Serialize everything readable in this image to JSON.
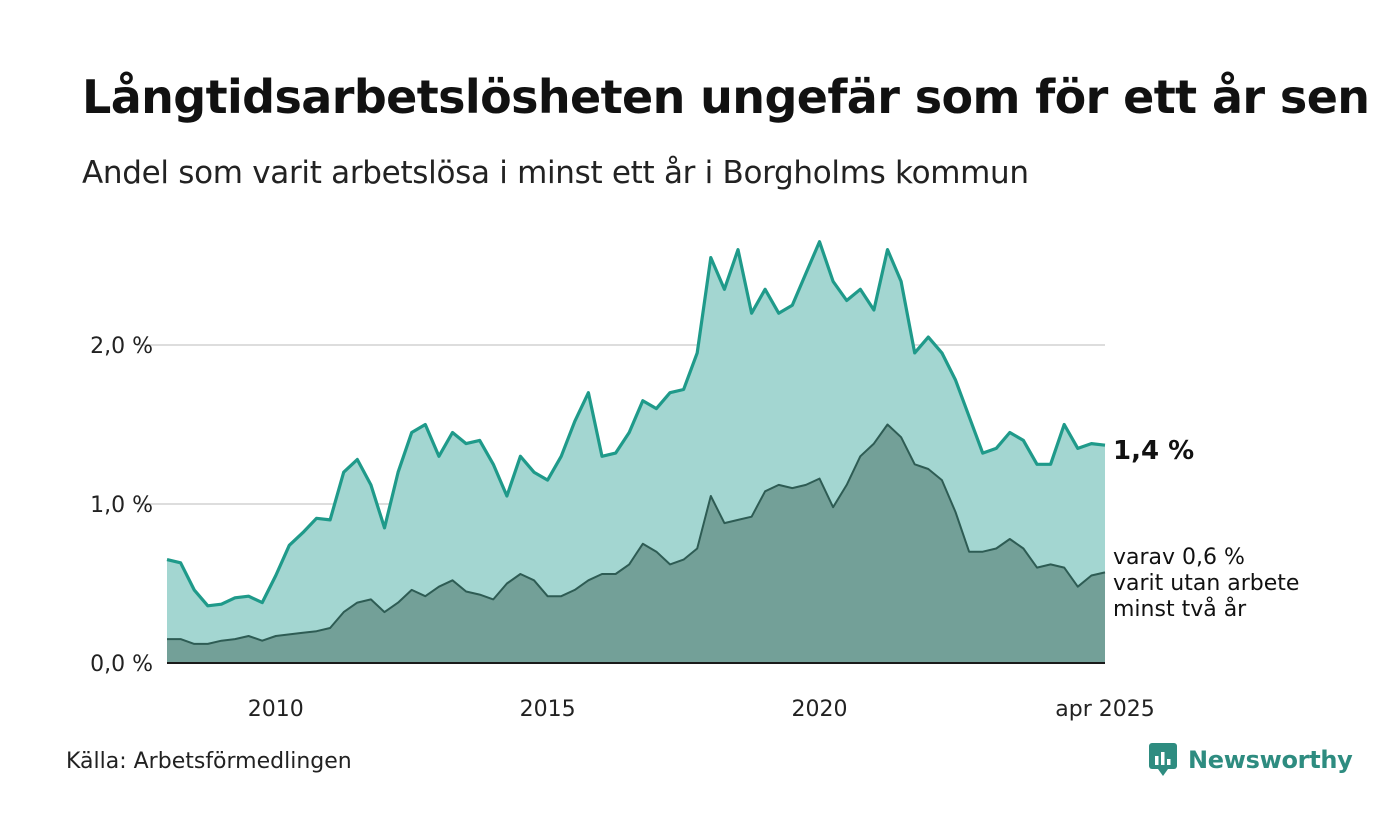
{
  "title": "Långtidsarbetslösheten ungefär som för ett år sen",
  "subtitle": "Andel som varit arbetslösa i minst ett år i Borgholms kommun",
  "source": "Källa: Arbetsförmedlingen",
  "brand": {
    "name": "Newsworthy",
    "icon": "newsworthy-logo-icon"
  },
  "colors": {
    "total_line": "#1f9a8a",
    "total_fill": "#a3d6d1",
    "sub_line": "#2e5c54",
    "sub_fill": "#73a098",
    "grid": "#dddddd",
    "brand": "#2e8c80"
  },
  "chart_data": {
    "type": "area",
    "x_start": "2008-01",
    "x_end": "2025-04",
    "x_ticks": [
      {
        "year": 2010,
        "label": "2010"
      },
      {
        "year": 2015,
        "label": "2015"
      },
      {
        "year": 2020,
        "label": "2020"
      },
      {
        "year": 2025.25,
        "label": "apr 2025"
      }
    ],
    "y_ticks": [
      {
        "value": 0,
        "label": "0,0 %"
      },
      {
        "value": 1,
        "label": "1,0 %"
      },
      {
        "value": 2,
        "label": "2,0 %"
      }
    ],
    "ylim": [
      0,
      2.7
    ],
    "grid": true,
    "annotations": {
      "total_label": "1,4 %",
      "sub_label_lines": [
        "varav 0,6 %",
        "varit utan arbete",
        "minst två år"
      ]
    },
    "series": [
      {
        "key": "total",
        "points": [
          [
            "2008-01",
            0.65
          ],
          [
            "2008-04",
            0.63
          ],
          [
            "2008-07",
            0.46
          ],
          [
            "2008-10",
            0.36
          ],
          [
            "2009-01",
            0.37
          ],
          [
            "2009-04",
            0.41
          ],
          [
            "2009-07",
            0.42
          ],
          [
            "2009-10",
            0.38
          ],
          [
            "2010-01",
            0.55
          ],
          [
            "2010-04",
            0.74
          ],
          [
            "2010-07",
            0.82
          ],
          [
            "2010-10",
            0.91
          ],
          [
            "2011-01",
            0.9
          ],
          [
            "2011-04",
            1.2
          ],
          [
            "2011-07",
            1.28
          ],
          [
            "2011-10",
            1.12
          ],
          [
            "2012-01",
            0.85
          ],
          [
            "2012-04",
            1.2
          ],
          [
            "2012-07",
            1.45
          ],
          [
            "2012-10",
            1.5
          ],
          [
            "2013-01",
            1.3
          ],
          [
            "2013-04",
            1.45
          ],
          [
            "2013-07",
            1.38
          ],
          [
            "2013-10",
            1.4
          ],
          [
            "2014-01",
            1.25
          ],
          [
            "2014-04",
            1.05
          ],
          [
            "2014-07",
            1.3
          ],
          [
            "2014-10",
            1.2
          ],
          [
            "2015-01",
            1.15
          ],
          [
            "2015-04",
            1.3
          ],
          [
            "2015-07",
            1.52
          ],
          [
            "2015-10",
            1.7
          ],
          [
            "2016-01",
            1.3
          ],
          [
            "2016-04",
            1.32
          ],
          [
            "2016-07",
            1.45
          ],
          [
            "2016-10",
            1.65
          ],
          [
            "2017-01",
            1.6
          ],
          [
            "2017-04",
            1.7
          ],
          [
            "2017-07",
            1.72
          ],
          [
            "2017-10",
            1.95
          ],
          [
            "2018-01",
            2.55
          ],
          [
            "2018-04",
            2.35
          ],
          [
            "2018-07",
            2.6
          ],
          [
            "2018-10",
            2.2
          ],
          [
            "2019-01",
            2.35
          ],
          [
            "2019-04",
            2.2
          ],
          [
            "2019-07",
            2.25
          ],
          [
            "2019-10",
            2.45
          ],
          [
            "2020-01",
            2.65
          ],
          [
            "2020-04",
            2.4
          ],
          [
            "2020-07",
            2.28
          ],
          [
            "2020-10",
            2.35
          ],
          [
            "2021-01",
            2.22
          ],
          [
            "2021-04",
            2.6
          ],
          [
            "2021-07",
            2.4
          ],
          [
            "2021-10",
            1.95
          ],
          [
            "2022-01",
            2.05
          ],
          [
            "2022-04",
            1.95
          ],
          [
            "2022-07",
            1.78
          ],
          [
            "2022-10",
            1.55
          ],
          [
            "2023-01",
            1.32
          ],
          [
            "2023-04",
            1.35
          ],
          [
            "2023-07",
            1.45
          ],
          [
            "2023-10",
            1.4
          ],
          [
            "2024-01",
            1.25
          ],
          [
            "2024-04",
            1.25
          ],
          [
            "2024-07",
            1.5
          ],
          [
            "2024-10",
            1.35
          ],
          [
            "2025-01",
            1.38
          ],
          [
            "2025-04",
            1.37
          ]
        ]
      },
      {
        "key": "sub",
        "points": [
          [
            "2008-01",
            0.15
          ],
          [
            "2008-04",
            0.15
          ],
          [
            "2008-07",
            0.12
          ],
          [
            "2008-10",
            0.12
          ],
          [
            "2009-01",
            0.14
          ],
          [
            "2009-04",
            0.15
          ],
          [
            "2009-07",
            0.17
          ],
          [
            "2009-10",
            0.14
          ],
          [
            "2010-01",
            0.17
          ],
          [
            "2010-04",
            0.18
          ],
          [
            "2010-07",
            0.19
          ],
          [
            "2010-10",
            0.2
          ],
          [
            "2011-01",
            0.22
          ],
          [
            "2011-04",
            0.32
          ],
          [
            "2011-07",
            0.38
          ],
          [
            "2011-10",
            0.4
          ],
          [
            "2012-01",
            0.32
          ],
          [
            "2012-04",
            0.38
          ],
          [
            "2012-07",
            0.46
          ],
          [
            "2012-10",
            0.42
          ],
          [
            "2013-01",
            0.48
          ],
          [
            "2013-04",
            0.52
          ],
          [
            "2013-07",
            0.45
          ],
          [
            "2013-10",
            0.43
          ],
          [
            "2014-01",
            0.4
          ],
          [
            "2014-04",
            0.5
          ],
          [
            "2014-07",
            0.56
          ],
          [
            "2014-10",
            0.52
          ],
          [
            "2015-01",
            0.42
          ],
          [
            "2015-04",
            0.42
          ],
          [
            "2015-07",
            0.46
          ],
          [
            "2015-10",
            0.52
          ],
          [
            "2016-01",
            0.56
          ],
          [
            "2016-04",
            0.56
          ],
          [
            "2016-07",
            0.62
          ],
          [
            "2016-10",
            0.75
          ],
          [
            "2017-01",
            0.7
          ],
          [
            "2017-04",
            0.62
          ],
          [
            "2017-07",
            0.65
          ],
          [
            "2017-10",
            0.72
          ],
          [
            "2018-01",
            1.05
          ],
          [
            "2018-04",
            0.88
          ],
          [
            "2018-07",
            0.9
          ],
          [
            "2018-10",
            0.92
          ],
          [
            "2019-01",
            1.08
          ],
          [
            "2019-04",
            1.12
          ],
          [
            "2019-07",
            1.1
          ],
          [
            "2019-10",
            1.12
          ],
          [
            "2020-01",
            1.16
          ],
          [
            "2020-04",
            0.98
          ],
          [
            "2020-07",
            1.12
          ],
          [
            "2020-10",
            1.3
          ],
          [
            "2021-01",
            1.38
          ],
          [
            "2021-04",
            1.5
          ],
          [
            "2021-07",
            1.42
          ],
          [
            "2021-10",
            1.25
          ],
          [
            "2022-01",
            1.22
          ],
          [
            "2022-04",
            1.15
          ],
          [
            "2022-07",
            0.95
          ],
          [
            "2022-10",
            0.7
          ],
          [
            "2023-01",
            0.7
          ],
          [
            "2023-04",
            0.72
          ],
          [
            "2023-07",
            0.78
          ],
          [
            "2023-10",
            0.72
          ],
          [
            "2024-01",
            0.6
          ],
          [
            "2024-04",
            0.62
          ],
          [
            "2024-07",
            0.6
          ],
          [
            "2024-10",
            0.48
          ],
          [
            "2025-01",
            0.55
          ],
          [
            "2025-04",
            0.57
          ]
        ]
      }
    ]
  }
}
